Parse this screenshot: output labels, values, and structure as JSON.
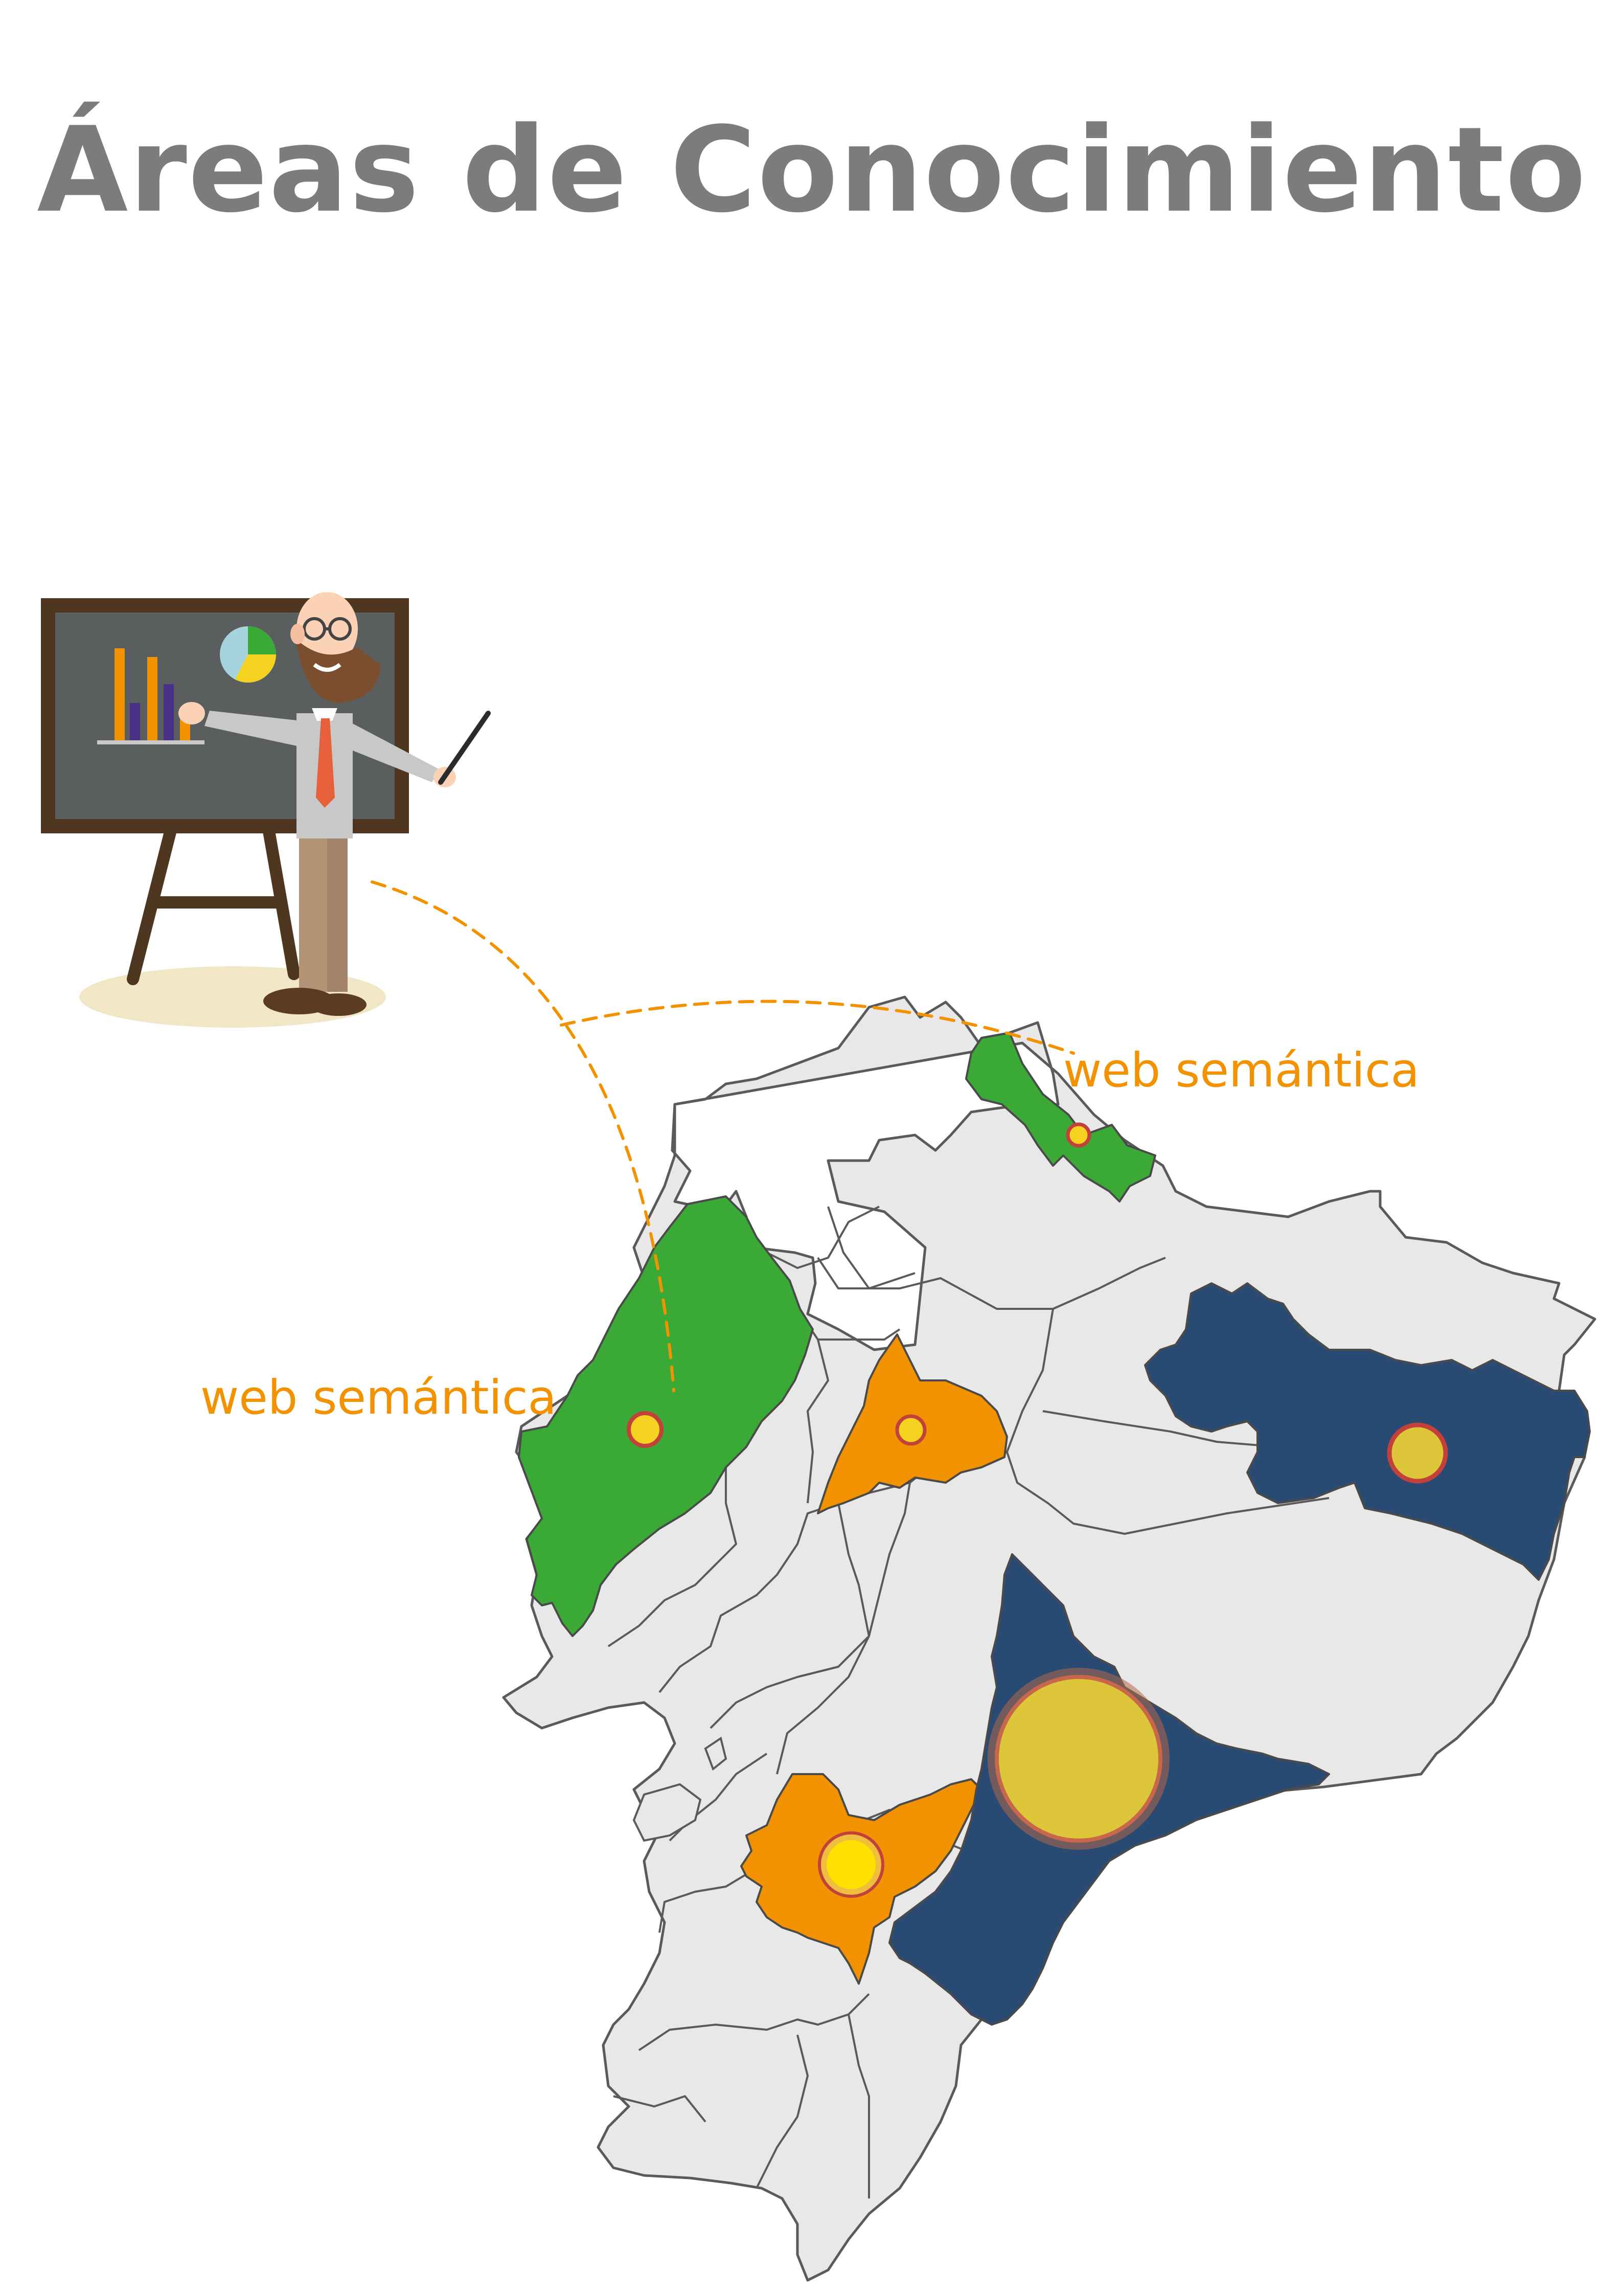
{
  "title": "Áreas de Conocimiento",
  "labels": {
    "north": "web semántica",
    "coast": "web semántica"
  },
  "colors": {
    "title": "#7c7c7c",
    "accent": "#f39200",
    "green": "#3aa935",
    "orange": "#f39200",
    "navy": "#294a73",
    "land": "#e8e8e8",
    "border": "#5a5a5a",
    "marker_fill": "#f4d21f",
    "marker_ring": "#c2413a"
  },
  "icons": {
    "presenter": "teacher-with-chalkboard",
    "board_bars": "bar-chart-icon",
    "board_pie": "pie-chart-icon"
  }
}
